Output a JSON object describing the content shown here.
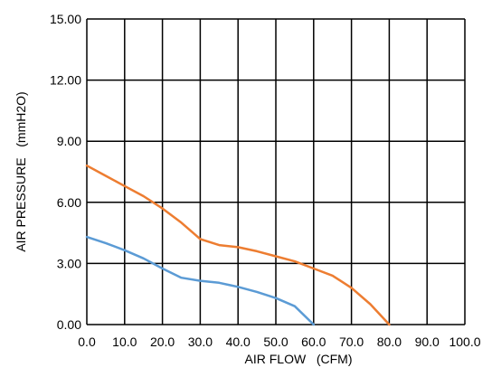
{
  "chart_data": {
    "type": "line",
    "xlabel": "AIR FLOW   (CFM)",
    "ylabel": "AIR PRESSURE   (mmH2O)",
    "xlim": [
      0,
      100
    ],
    "ylim": [
      0,
      15
    ],
    "x_ticks": [
      "0.0",
      "10.0",
      "20.0",
      "30.0",
      "40.0",
      "50.0",
      "60.0",
      "70.0",
      "80.0",
      "90.0",
      "100.0"
    ],
    "y_ticks": [
      "0.00",
      "3.00",
      "6.00",
      "9.00",
      "12.00",
      "15.00"
    ],
    "x_tick_values": [
      0,
      10,
      20,
      30,
      40,
      50,
      60,
      70,
      80,
      90,
      100
    ],
    "y_tick_values": [
      0,
      3,
      6,
      9,
      12,
      15
    ],
    "grid": true,
    "series": [
      {
        "color": "#ED7D31",
        "x": [
          0,
          5,
          10,
          15,
          20,
          25,
          30,
          35,
          40,
          45,
          50,
          55,
          60,
          65,
          70,
          75,
          80
        ],
        "y": [
          7.8,
          7.3,
          6.8,
          6.3,
          5.7,
          5.0,
          4.2,
          3.9,
          3.8,
          3.6,
          3.35,
          3.1,
          2.75,
          2.4,
          1.8,
          1.0,
          0.0
        ]
      },
      {
        "color": "#5B9BD5",
        "x": [
          0,
          5,
          10,
          15,
          20,
          25,
          30,
          35,
          40,
          45,
          50,
          55,
          60
        ],
        "y": [
          4.3,
          4.0,
          3.65,
          3.25,
          2.75,
          2.3,
          2.15,
          2.05,
          1.85,
          1.6,
          1.3,
          0.9,
          0.0
        ]
      }
    ]
  }
}
